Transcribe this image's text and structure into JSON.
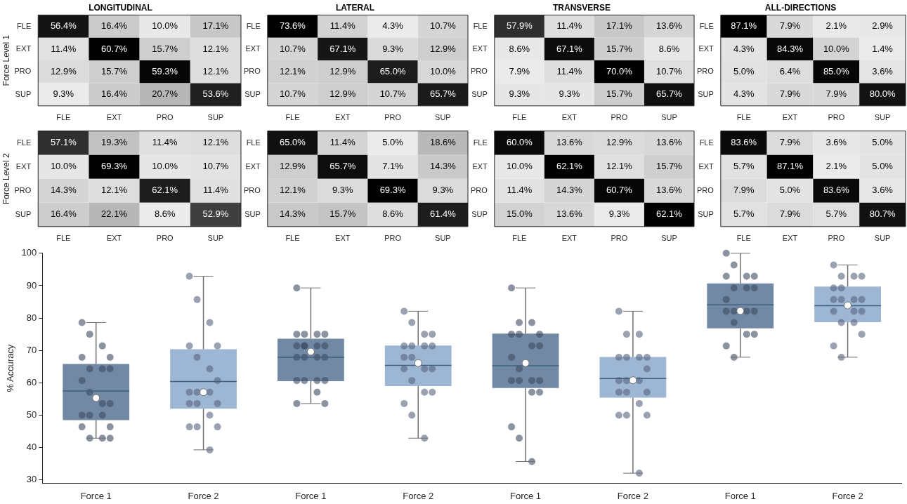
{
  "chart_data": [
    {
      "type": "heatmap",
      "title": "LONGITUDINAL",
      "ylabel": "Force Level 1",
      "categories": [
        "FLE",
        "EXT",
        "PRO",
        "SUP"
      ],
      "y_categories": [
        "FLE",
        "EXT",
        "PRO",
        "SUP"
      ],
      "cells": [
        [
          56.4,
          16.4,
          10.0,
          17.1
        ],
        [
          11.4,
          60.7,
          15.7,
          12.1
        ],
        [
          12.9,
          15.7,
          59.3,
          12.1
        ],
        [
          9.3,
          16.4,
          20.7,
          53.6
        ]
      ],
      "cell_labels": [
        [
          "56.4%",
          "16.4%",
          "10.0%",
          "17.1%"
        ],
        [
          "11.4%",
          "60.7%",
          "15.7%",
          "12.1%"
        ],
        [
          "12.9%",
          "15.7%",
          "59.3%",
          "12.1%"
        ],
        [
          "9.3%",
          "16.4%",
          "20.7%",
          "53.6%"
        ]
      ]
    },
    {
      "type": "heatmap",
      "title": "LATERAL",
      "categories": [
        "FLE",
        "EXT",
        "PRO",
        "SUP"
      ],
      "y_categories": [
        "FLE",
        "EXT",
        "PRO",
        "SUP"
      ],
      "cells": [
        [
          73.6,
          11.4,
          4.3,
          10.7
        ],
        [
          10.7,
          67.1,
          9.3,
          12.9
        ],
        [
          12.1,
          12.9,
          65.0,
          10.0
        ],
        [
          10.7,
          12.9,
          10.7,
          65.7
        ]
      ],
      "cell_labels": [
        [
          "73.6%",
          "11.4%",
          "4.3%",
          "10.7%"
        ],
        [
          "10.7%",
          "67.1%",
          "9.3%",
          "12.9%"
        ],
        [
          "12.1%",
          "12.9%",
          "65.0%",
          "10.0%"
        ],
        [
          "10.7%",
          "12.9%",
          "10.7%",
          "65.7%"
        ]
      ]
    },
    {
      "type": "heatmap",
      "title": "TRANSVERSE",
      "categories": [
        "FLE",
        "EXT",
        "PRO",
        "SUP"
      ],
      "y_categories": [
        "FLE",
        "EXT",
        "PRO",
        "SUP"
      ],
      "cells": [
        [
          57.9,
          11.4,
          17.1,
          13.6
        ],
        [
          8.6,
          67.1,
          15.7,
          8.6
        ],
        [
          7.9,
          11.4,
          70.0,
          10.7
        ],
        [
          9.3,
          9.3,
          15.7,
          65.7
        ]
      ],
      "cell_labels": [
        [
          "57.9%",
          "11.4%",
          "17.1%",
          "13.6%"
        ],
        [
          "8.6%",
          "67.1%",
          "15.7%",
          "8.6%"
        ],
        [
          "7.9%",
          "11.4%",
          "70.0%",
          "10.7%"
        ],
        [
          "9.3%",
          "9.3%",
          "15.7%",
          "65.7%"
        ]
      ]
    },
    {
      "type": "heatmap",
      "title": "ALL-DIRECTIONS",
      "categories": [
        "FLE",
        "EXT",
        "PRO",
        "SUP"
      ],
      "y_categories": [
        "FLE",
        "EXT",
        "PRO",
        "SUP"
      ],
      "cells": [
        [
          87.1,
          7.9,
          2.1,
          2.9
        ],
        [
          4.3,
          84.3,
          10.0,
          1.4
        ],
        [
          5.0,
          6.4,
          85.0,
          3.6
        ],
        [
          4.3,
          7.9,
          7.9,
          80.0
        ]
      ],
      "cell_labels": [
        [
          "87.1%",
          "7.9%",
          "2.1%",
          "2.9%"
        ],
        [
          "4.3%",
          "84.3%",
          "10.0%",
          "1.4%"
        ],
        [
          "5.0%",
          "6.4%",
          "85.0%",
          "3.6%"
        ],
        [
          "4.3%",
          "7.9%",
          "7.9%",
          "80.0%"
        ]
      ]
    },
    {
      "type": "heatmap",
      "ylabel": "Force Level 2",
      "categories": [
        "FLE",
        "EXT",
        "PRO",
        "SUP"
      ],
      "y_categories": [
        "FLE",
        "EXT",
        "PRO",
        "SUP"
      ],
      "cells": [
        [
          57.1,
          19.3,
          11.4,
          12.1
        ],
        [
          10.0,
          69.3,
          10.0,
          10.7
        ],
        [
          14.3,
          12.1,
          62.1,
          11.4
        ],
        [
          16.4,
          22.1,
          8.6,
          52.9
        ]
      ],
      "cell_labels": [
        [
          "57.1%",
          "19.3%",
          "11.4%",
          "12.1%"
        ],
        [
          "10.0%",
          "69.3%",
          "10.0%",
          "10.7%"
        ],
        [
          "14.3%",
          "12.1%",
          "62.1%",
          "11.4%"
        ],
        [
          "16.4%",
          "22.1%",
          "8.6%",
          "52.9%"
        ]
      ]
    },
    {
      "type": "heatmap",
      "categories": [
        "FLE",
        "EXT",
        "PRO",
        "SUP"
      ],
      "y_categories": [
        "FLE",
        "EXT",
        "PRO",
        "SUP"
      ],
      "cells": [
        [
          65.0,
          11.4,
          5.0,
          18.6
        ],
        [
          12.9,
          65.7,
          7.1,
          14.3
        ],
        [
          12.1,
          9.3,
          69.3,
          9.3
        ],
        [
          14.3,
          15.7,
          8.6,
          61.4
        ]
      ],
      "cell_labels": [
        [
          "65.0%",
          "11.4%",
          "5.0%",
          "18.6%"
        ],
        [
          "12.9%",
          "65.7%",
          "7.1%",
          "14.3%"
        ],
        [
          "12.1%",
          "9.3%",
          "69.3%",
          "9.3%"
        ],
        [
          "14.3%",
          "15.7%",
          "8.6%",
          "61.4%"
        ]
      ]
    },
    {
      "type": "heatmap",
      "categories": [
        "FLE",
        "EXT",
        "PRO",
        "SUP"
      ],
      "y_categories": [
        "FLE",
        "EXT",
        "PRO",
        "SUP"
      ],
      "cells": [
        [
          60.0,
          13.6,
          12.9,
          13.6
        ],
        [
          10.0,
          62.1,
          12.1,
          15.7
        ],
        [
          11.4,
          14.3,
          60.7,
          13.6
        ],
        [
          15.0,
          13.6,
          9.3,
          62.1
        ]
      ],
      "cell_labels": [
        [
          "60.0%",
          "13.6%",
          "12.9%",
          "13.6%"
        ],
        [
          "10.0%",
          "62.1%",
          "12.1%",
          "15.7%"
        ],
        [
          "11.4%",
          "14.3%",
          "60.7%",
          "13.6%"
        ],
        [
          "15.0%",
          "13.6%",
          "9.3%",
          "62.1%"
        ]
      ]
    },
    {
      "type": "heatmap",
      "categories": [
        "FLE",
        "EXT",
        "PRO",
        "SUP"
      ],
      "y_categories": [
        "FLE",
        "EXT",
        "PRO",
        "SUP"
      ],
      "cells": [
        [
          83.6,
          7.9,
          3.6,
          5.0
        ],
        [
          5.7,
          87.1,
          2.1,
          5.0
        ],
        [
          7.9,
          5.0,
          83.6,
          3.6
        ],
        [
          5.7,
          7.9,
          5.7,
          80.7
        ]
      ],
      "cell_labels": [
        [
          "83.6%",
          "7.9%",
          "3.6%",
          "5.0%"
        ],
        [
          "5.7%",
          "87.1%",
          "2.1%",
          "5.0%"
        ],
        [
          "7.9%",
          "5.0%",
          "83.6%",
          "3.6%"
        ],
        [
          "5.7%",
          "7.9%",
          "5.7%",
          "80.7%"
        ]
      ]
    },
    {
      "type": "box",
      "ylabel": "% Accuracy",
      "categories": [
        "Force 1",
        "Force 2",
        "Force 1",
        "Force 2",
        "Force 1",
        "Force 2",
        "Force 1",
        "Force 2"
      ],
      "ylim": [
        29,
        100
      ],
      "yticks": [
        30,
        40,
        50,
        60,
        70,
        80,
        90,
        100
      ],
      "grid": false,
      "legend": false,
      "series": [
        {
          "type": "box",
          "colors": [
            "#7189a4",
            "#9db6d4",
            "#7189a4",
            "#9db6d4",
            "#7189a4",
            "#9db6d4",
            "#7189a4",
            "#9db6d4"
          ],
          "boxes": [
            {
              "low": 42.9,
              "q1": 48.5,
              "median": 57.5,
              "q3": 65.8,
              "high": 78.6,
              "mean": 55.3,
              "outliers": [
                78.6,
                75,
                71.4,
                67.9,
                67.9,
                64.3,
                64.3,
                64.3,
                60.7,
                57.1,
                53.6,
                53.6,
                50,
                50,
                50,
                46.4,
                46.4,
                42.9,
                42.9,
                42.9
              ]
            },
            {
              "low": 39.3,
              "q1": 52.0,
              "median": 60.4,
              "q3": 70.4,
              "high": 92.9,
              "mean": 57.1,
              "outliers": [
                92.9,
                85.7,
                78.6,
                71.4,
                71.4,
                67.9,
                64.3,
                60.7,
                57.1,
                57.1,
                57.1,
                53.6,
                53.6,
                53.6,
                50,
                46.4,
                46.4,
                46.4,
                39.3
              ]
            },
            {
              "low": 53.6,
              "q1": 60.5,
              "median": 67.9,
              "q3": 73.6,
              "high": 89.3,
              "mean": 69.6,
              "outliers": [
                89.3,
                75,
                75,
                75,
                75,
                71.4,
                71.4,
                71.4,
                71.4,
                71.4,
                67.9,
                67.9,
                67.9,
                67.9,
                60.7,
                60.7,
                60.7,
                60.7,
                57.1,
                53.6,
                53.6
              ]
            },
            {
              "low": 42.9,
              "q1": 59.0,
              "median": 65.4,
              "q3": 71.5,
              "high": 82.1,
              "mean": 66.1,
              "outliers": [
                82.1,
                78.6,
                75,
                75,
                71.4,
                71.4,
                71.4,
                71.4,
                67.9,
                67.9,
                64.3,
                64.3,
                64.3,
                60.7,
                57.1,
                57.1,
                53.6,
                50,
                42.9
              ]
            },
            {
              "low": 35.7,
              "q1": 58.4,
              "median": 65.3,
              "q3": 75.2,
              "high": 89.3,
              "mean": 66.1,
              "outliers": [
                89.3,
                78.6,
                78.6,
                75,
                75,
                75,
                71.4,
                71.4,
                67.9,
                64.3,
                60.7,
                60.7,
                60.7,
                60.7,
                57.1,
                57.1,
                46.4,
                42.9,
                35.7
              ]
            },
            {
              "low": 32.1,
              "q1": 55.4,
              "median": 61.3,
              "q3": 68.0,
              "high": 82.1,
              "mean": 60.8,
              "outliers": [
                82.1,
                75,
                75,
                67.9,
                67.9,
                67.9,
                67.9,
                64.3,
                60.7,
                60.7,
                60.7,
                57.1,
                57.1,
                57.1,
                53.6,
                50,
                50,
                50,
                32.1
              ]
            },
            {
              "low": 67.9,
              "q1": 76.8,
              "median": 84.1,
              "q3": 90.7,
              "high": 100,
              "mean": 82.2,
              "outliers": [
                100,
                96.4,
                92.9,
                92.9,
                92.9,
                89.3,
                89.3,
                89.3,
                85.7,
                82.1,
                82.1,
                82.1,
                82.1,
                78.6,
                75,
                75,
                71.4,
                67.9
              ]
            },
            {
              "low": 67.9,
              "q1": 78.7,
              "median": 83.8,
              "q3": 89.7,
              "high": 96.4,
              "mean": 83.9,
              "outliers": [
                96.4,
                92.9,
                92.9,
                92.9,
                89.3,
                89.3,
                85.7,
                85.7,
                85.7,
                85.7,
                82.1,
                82.1,
                82.1,
                78.6,
                78.6,
                75,
                71.4,
                67.9
              ]
            }
          ]
        }
      ]
    }
  ]
}
